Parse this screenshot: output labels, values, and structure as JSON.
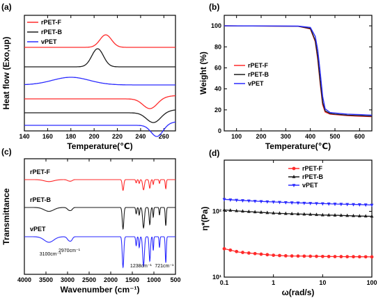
{
  "chart_data": [
    {
      "panel": "(a)",
      "type": "line",
      "title": "",
      "xlabel": "Temperature(℃)",
      "ylabel": "Heat flow (Exo,up)",
      "xlim": [
        140,
        270
      ],
      "xticks": [
        140,
        160,
        180,
        200,
        220,
        240,
        260
      ],
      "y_ticks_shown": false,
      "legend": [
        "rPET-F",
        "rPET-B",
        "vPET"
      ],
      "legend_position": "top-left",
      "colors": {
        "rPET-F": "#ff2a2a",
        "rPET-B": "#1a1a1a",
        "vPET": "#2a2aff"
      },
      "series": [
        {
          "name": "rPET-F",
          "curve": "cooling",
          "peak_type": "exothermic",
          "peak_T": 210,
          "peak_height": 0.9,
          "peak_width": 5,
          "offset": 5.6
        },
        {
          "name": "rPET-B",
          "curve": "cooling",
          "peak_type": "exothermic",
          "peak_T": 203,
          "peak_height": 1.3,
          "peak_width": 5,
          "offset": 4.2
        },
        {
          "name": "vPET",
          "curve": "cooling",
          "peak_type": "exothermic",
          "peak_T": 180,
          "peak_height": 0.55,
          "peak_width": 16,
          "offset": 2.9
        },
        {
          "name": "rPET-F",
          "curve": "heating",
          "peak_type": "endothermic",
          "peak_T": 248,
          "peak_height": 0.7,
          "peak_width": 6,
          "offset": 1.9
        },
        {
          "name": "rPET-B",
          "curve": "heating",
          "peak_type": "endothermic",
          "peak_T": 251,
          "peak_height": 0.7,
          "peak_width": 6,
          "offset": 0.9
        },
        {
          "name": "vPET",
          "curve": "heating",
          "peak_type": "endothermic",
          "peak_T": 254,
          "peak_height": 0.8,
          "peak_width": 5,
          "offset": 0.0
        }
      ]
    },
    {
      "panel": "(b)",
      "type": "line",
      "title": "",
      "xlabel": "Temperature(℃)",
      "ylabel": "Weight (%)",
      "xlim": [
        50,
        650
      ],
      "ylim": [
        0,
        110
      ],
      "xticks": [
        100,
        200,
        300,
        400,
        500,
        600
      ],
      "yticks": [
        0,
        20,
        40,
        60,
        80,
        100
      ],
      "legend": [
        "rPET-F",
        "rPET-B",
        "vPET"
      ],
      "legend_position": "center",
      "colors": {
        "rPET-F": "#ff2a2a",
        "rPET-B": "#1a1a1a",
        "vPET": "#2a2aff"
      },
      "series": [
        {
          "name": "rPET-F",
          "x": [
            50,
            350,
            400,
            420,
            430,
            440,
            450,
            460,
            480,
            500,
            550,
            600,
            650
          ],
          "y": [
            100,
            99.6,
            97,
            85,
            68,
            45,
            25,
            18,
            16,
            15.5,
            14.5,
            14,
            13.5
          ]
        },
        {
          "name": "rPET-B",
          "x": [
            50,
            350,
            400,
            420,
            430,
            440,
            450,
            460,
            480,
            500,
            550,
            600,
            650
          ],
          "y": [
            100,
            99.6,
            97.5,
            86,
            70,
            47,
            27,
            19,
            16.5,
            16,
            15,
            14.5,
            14
          ]
        },
        {
          "name": "vPET",
          "x": [
            50,
            350,
            400,
            420,
            430,
            440,
            450,
            460,
            480,
            500,
            550,
            600,
            650
          ],
          "y": [
            100,
            99.7,
            98.5,
            90,
            77,
            56,
            33,
            21,
            17.5,
            17,
            16,
            15.5,
            15
          ]
        }
      ]
    },
    {
      "panel": "(c)",
      "type": "line",
      "title": "",
      "xlabel": "Wavenumber (cm⁻¹)",
      "ylabel": "Transmittance",
      "xlim": [
        4000,
        500
      ],
      "xticks": [
        4000,
        3500,
        3000,
        2500,
        2000,
        1500,
        1000,
        500
      ],
      "y_ticks_shown": false,
      "series_labels": [
        "rPET-F",
        "rPET-B",
        "vPET"
      ],
      "colors": {
        "rPET-F": "#ff2a2a",
        "rPET-B": "#1a1a1a",
        "vPET": "#2a2aff"
      },
      "annotations": [
        "3100cm⁻¹",
        "2970cm⁻¹",
        "1238cm⁻¹",
        "721cm⁻¹"
      ],
      "series": [
        {
          "name": "rPET-F",
          "offset": 2.0,
          "scale": 0.35
        },
        {
          "name": "rPET-B",
          "offset": 1.0,
          "scale": 0.7
        },
        {
          "name": "vPET",
          "offset": 0.0,
          "scale": 1.0
        }
      ],
      "bands": [
        {
          "wavenumber": 3430,
          "depth": 0.18,
          "width": 110
        },
        {
          "wavenumber": 2965,
          "depth": 0.12,
          "width": 40
        },
        {
          "wavenumber": 2910,
          "depth": 0.08,
          "width": 30
        },
        {
          "wavenumber": 1715,
          "depth": 1.0,
          "width": 18
        },
        {
          "wavenumber": 1410,
          "depth": 0.3,
          "width": 12
        },
        {
          "wavenumber": 1340,
          "depth": 0.35,
          "width": 12
        },
        {
          "wavenumber": 1240,
          "depth": 0.95,
          "width": 20
        },
        {
          "wavenumber": 1095,
          "depth": 0.8,
          "width": 16
        },
        {
          "wavenumber": 1015,
          "depth": 0.45,
          "width": 10
        },
        {
          "wavenumber": 870,
          "depth": 0.35,
          "width": 10
        },
        {
          "wavenumber": 725,
          "depth": 0.85,
          "width": 12
        }
      ]
    },
    {
      "panel": "(d)",
      "type": "line",
      "title": "",
      "xlabel": "ω(rad/s)",
      "ylabel": "η*(Pa)",
      "xscale": "log",
      "yscale": "log",
      "xlim": [
        0.1,
        100
      ],
      "ylim": [
        10,
        600
      ],
      "xticks": [
        0.1,
        1,
        10,
        100
      ],
      "xtick_labels": [
        "0.1",
        "1",
        "10",
        "100"
      ],
      "yticks": [
        10,
        100
      ],
      "ytick_labels": [
        "10¹",
        "10²"
      ],
      "legend": [
        "rPET-F",
        "rPET-B",
        "vPET"
      ],
      "legend_position": "top-right",
      "colors": {
        "rPET-F": "#ff2a2a",
        "rPET-B": "#1a1a1a",
        "vPET": "#2a2aff"
      },
      "markers": {
        "rPET-F": "circle",
        "rPET-B": "triangle",
        "vPET": "triangle-down"
      },
      "series": [
        {
          "name": "rPET-F",
          "x": [
            0.1,
            0.2,
            0.5,
            1,
            2,
            5,
            10,
            20,
            50,
            100
          ],
          "y": [
            27,
            24,
            22.5,
            21.5,
            21,
            20.8,
            20.6,
            20.5,
            20.4,
            20.3
          ]
        },
        {
          "name": "rPET-B",
          "x": [
            0.1,
            0.2,
            0.5,
            1,
            2,
            5,
            10,
            20,
            50,
            100
          ],
          "y": [
            105,
            101,
            97,
            94,
            92,
            90,
            88,
            87,
            85,
            84
          ]
        },
        {
          "name": "vPET",
          "x": [
            0.1,
            0.2,
            0.5,
            1,
            2,
            5,
            10,
            20,
            50,
            100
          ],
          "y": [
            152,
            147,
            142,
            139,
            136,
            133,
            131,
            129,
            127,
            125
          ]
        }
      ]
    }
  ]
}
